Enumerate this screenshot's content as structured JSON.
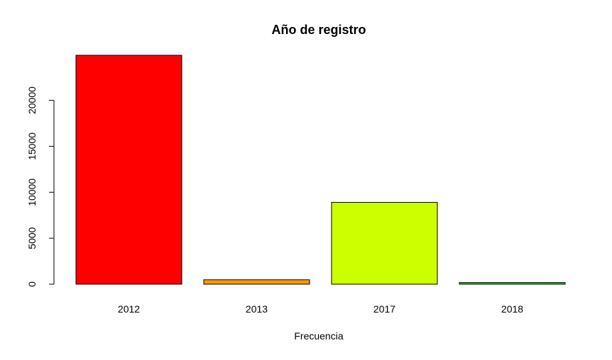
{
  "chart_data": {
    "type": "bar",
    "title": "Año de registro",
    "xlabel": "Frecuencia",
    "ylabel": "",
    "categories": [
      "2012",
      "2013",
      "2017",
      "2018"
    ],
    "values": [
      24900,
      480,
      8900,
      180
    ],
    "colors": [
      "#FF0000",
      "#FF9900",
      "#CCFF00",
      "#33CC33"
    ],
    "ylim": [
      0,
      24900
    ],
    "yticks": [
      0,
      5000,
      10000,
      15000,
      20000
    ],
    "ytick_labels": [
      "0",
      "5000",
      "10000",
      "15000",
      "20000"
    ],
    "grid": false,
    "legend": "none"
  }
}
